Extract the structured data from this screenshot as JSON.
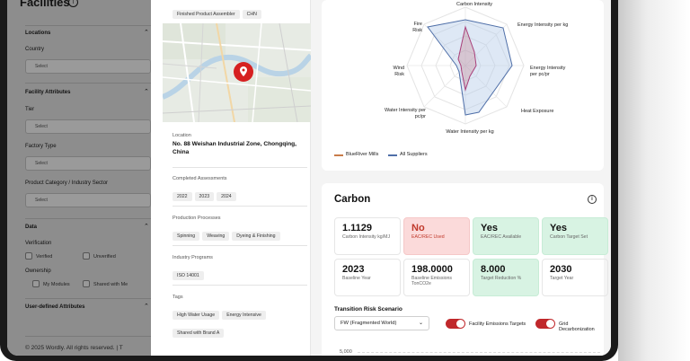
{
  "sidebar": {
    "title": "Facilities",
    "sections": {
      "locations": "Locations",
      "country_label": "Country",
      "country_placeholder": "Select",
      "facility_attributes": "Facility Attributes",
      "tier_label": "Tier",
      "tier_placeholder": "Select",
      "factory_type_label": "Factory Type",
      "factory_type_placeholder": "Select",
      "product_category_label": "Product Category / Industry Sector",
      "product_category_placeholder": "Select",
      "data": "Data",
      "verification_label": "Verification",
      "verified": "Verified",
      "unverified": "Unverified",
      "ownership_label": "Ownership",
      "my_modules": "My Modules",
      "shared_with_me": "Shared with Me",
      "user_defined": "User-defined Attributes"
    },
    "footer": "© 2025 Wordly. All rights reserved.   |   T"
  },
  "facility": {
    "top_chips": [
      "Finished Product Assembler",
      "CHN"
    ],
    "location_label": "Location",
    "address": "No. 88 Weishan Industrial Zone, Chongqing, China",
    "completed_label": "Completed Assessments",
    "years": [
      "2022",
      "2023",
      "2024"
    ],
    "processes_label": "Production Processes",
    "processes": [
      "Spinning",
      "Weaving",
      "Dyeing & Finishing"
    ],
    "programs_label": "Industry Programs",
    "programs": [
      "ISO 14001"
    ],
    "tags_label": "Tags",
    "tags": [
      "High Water Usage",
      "Energy Intensive",
      "Shared with Brand A"
    ]
  },
  "radar": {
    "labels": [
      "Carbon Intensity",
      "Energy Intensity per kg",
      "Energy Intensity per pc/pr",
      "Heat Exposure",
      "Water Intensity per kg",
      "Water Intensity per pc/pr",
      "Wind Risk",
      "Fire Risk"
    ],
    "legend": [
      "BlueRiver Mills",
      "All Suppliers"
    ],
    "colors": {
      "blueriver": "#c0606a",
      "all": "#4f6fa8"
    }
  },
  "carbon": {
    "title": "Carbon",
    "metrics": [
      {
        "value": "1.1129",
        "label": "Carbon Intensity kg/MJ",
        "style": "plain"
      },
      {
        "value": "No",
        "label": "EAC/REC Used",
        "style": "red"
      },
      {
        "value": "Yes",
        "label": "EAC/REC Available",
        "style": "green"
      },
      {
        "value": "Yes",
        "label": "Carbon Target Set",
        "style": "green"
      },
      {
        "value": "2023",
        "label": "Baseline Year",
        "style": "plain"
      },
      {
        "value": "198.0000",
        "label": "Baseline Emissions TonCO2e",
        "style": "plain"
      },
      {
        "value": "8.000",
        "label": "Target Reduction %",
        "style": "green"
      },
      {
        "value": "2030",
        "label": "Target Year",
        "style": "plain"
      }
    ],
    "transition_title": "Transition Risk Scenario",
    "scenario_value": "FW (Fragmented World)",
    "toggle1": "Facility Emissions Targets",
    "toggle2": "Grid Decarbonization",
    "axis_top": "5,000"
  }
}
